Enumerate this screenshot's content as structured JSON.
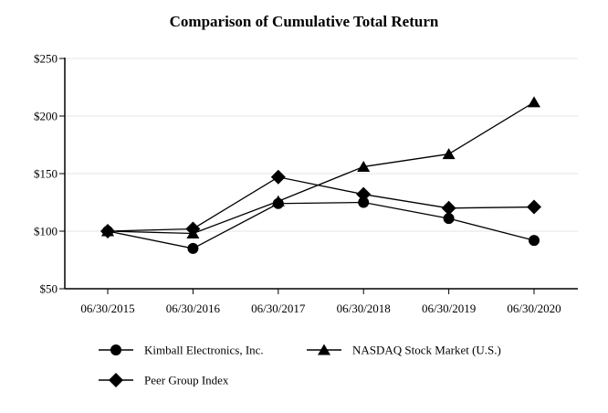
{
  "chart_data": {
    "type": "line",
    "title": "Comparison of Cumulative Total Return",
    "xlabel": "",
    "ylabel": "",
    "categories": [
      "06/30/2015",
      "06/30/2016",
      "06/30/2017",
      "06/30/2018",
      "06/30/2019",
      "06/30/2020"
    ],
    "ylim": [
      50,
      250
    ],
    "yticks": [
      50,
      100,
      150,
      200,
      250
    ],
    "ytick_labels": [
      "$50",
      "$100",
      "$150",
      "$200",
      "$250"
    ],
    "grid": "horizontal",
    "legend_position": "bottom",
    "series": [
      {
        "name": "Kimball Electronics, Inc.",
        "marker": "circle",
        "values": [
          100,
          85,
          124,
          125,
          111,
          92
        ]
      },
      {
        "name": "NASDAQ Stock Market (U.S.)",
        "marker": "triangle",
        "values": [
          100,
          98,
          126,
          156,
          167,
          212
        ]
      },
      {
        "name": "Peer Group Index",
        "marker": "diamond",
        "values": [
          100,
          102,
          147,
          132,
          120,
          121
        ]
      }
    ]
  },
  "colors": {
    "line": "#000000",
    "grid": "#e6e6e6",
    "axis": "#000000"
  }
}
